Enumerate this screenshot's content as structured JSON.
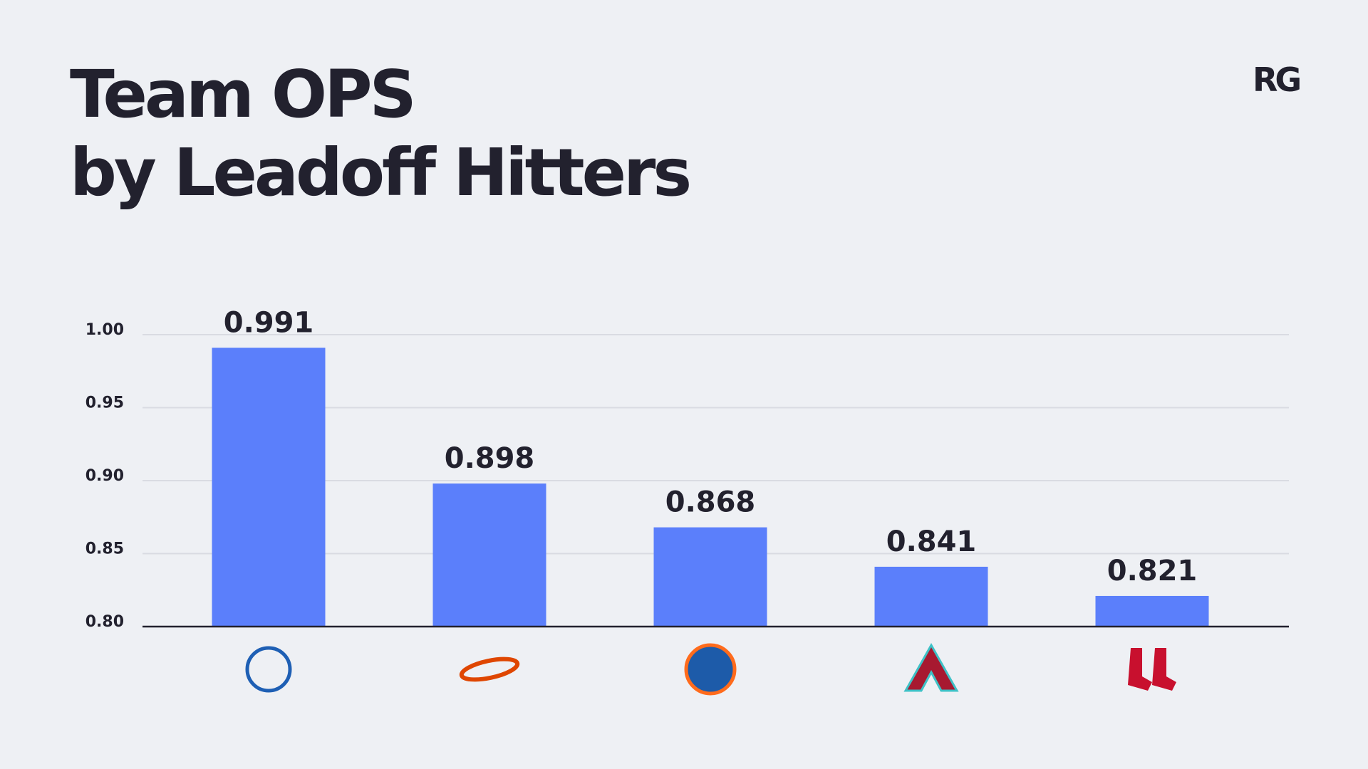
{
  "brand": "RG",
  "chart_data": {
    "type": "bar",
    "title": [
      "Team OPS",
      "by Leadoff Hitters"
    ],
    "categories": [
      null,
      null,
      null,
      null,
      null
    ],
    "values": [
      0.991,
      0.898,
      0.868,
      0.841,
      0.821
    ],
    "color": "#5b7ffb",
    "ylim": [
      0.8,
      1.0
    ],
    "yticks": [
      {
        "value": 0.8,
        "label": "0.80"
      },
      0.85,
      {
        "value": 0.9,
        "label": "0.90"
      },
      0.95,
      {
        "value": 1,
        "label": "1.00"
      }
    ],
    "grid": true
  }
}
